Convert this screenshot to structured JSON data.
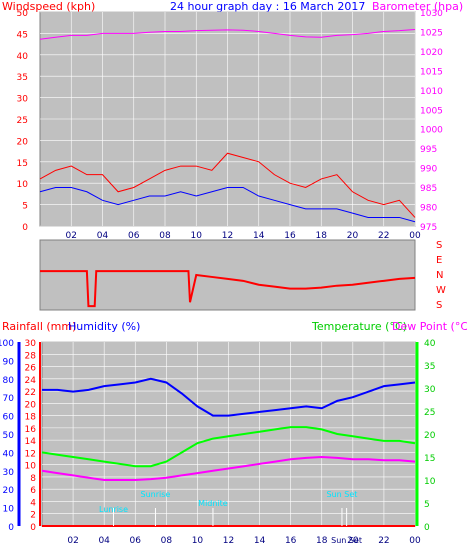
{
  "header": {
    "wind_label": "Windspeed (kph)",
    "title": "24 hour graph day : 16 March 2017",
    "baro_label": "Barometer (hpa)"
  },
  "lower_header": {
    "rain_label": "Rainfall (mm)",
    "hum_label": "Humidity (%)",
    "temp_label": "Temperature (°C)",
    "dew_label": "Dew Point (°C)"
  },
  "colors": {
    "plot_bg": "#c0c0c0",
    "grid": "#ffffff",
    "wind": "#ff0000",
    "wind_avg": "#0000ff",
    "barometer": "#ff00ff",
    "rain": "#ff0000",
    "humidity": "#0000ff",
    "temperature": "#00ff00",
    "dewpoint": "#ff00ff",
    "sun_labels": "#00e5ff"
  },
  "chart_data": [
    {
      "type": "line",
      "title": "24 hour graph day : 16 March 2017",
      "x_ticks": [
        "02",
        "04",
        "06",
        "08",
        "10",
        "12",
        "14",
        "16",
        "18",
        "20",
        "22",
        "00"
      ],
      "y_left": {
        "label": "Windspeed (kph)",
        "ticks": [
          0,
          5,
          10,
          15,
          20,
          25,
          30,
          35,
          40,
          45,
          50
        ],
        "ylim": [
          0,
          50
        ]
      },
      "y_right": {
        "label": "Barometer (hpa)",
        "ticks": [
          975,
          980,
          985,
          990,
          995,
          1000,
          1005,
          1010,
          1015,
          1020,
          1025,
          1030
        ],
        "ylim": [
          975,
          1030
        ]
      },
      "hours": [
        0,
        1,
        2,
        3,
        4,
        5,
        6,
        7,
        8,
        9,
        10,
        11,
        12,
        13,
        14,
        15,
        16,
        17,
        18,
        19,
        20,
        21,
        22,
        23,
        24
      ],
      "series": [
        {
          "name": "wind_gust",
          "axis": "left",
          "values": [
            11,
            13,
            14,
            12,
            12,
            8,
            9,
            11,
            13,
            14,
            14,
            13,
            17,
            16,
            15,
            12,
            10,
            9,
            11,
            12,
            8,
            6,
            5,
            6,
            2
          ]
        },
        {
          "name": "wind_avg",
          "axis": "left",
          "values": [
            8,
            9,
            9,
            8,
            6,
            5,
            6,
            7,
            7,
            8,
            7,
            8,
            9,
            9,
            7,
            6,
            5,
            4,
            4,
            4,
            3,
            2,
            2,
            2,
            1
          ]
        },
        {
          "name": "barometer",
          "axis": "right",
          "values": [
            1023,
            1023.5,
            1024,
            1024,
            1024.5,
            1024.5,
            1024.5,
            1024.8,
            1025,
            1025,
            1025.2,
            1025.3,
            1025.4,
            1025.3,
            1025,
            1024.5,
            1024,
            1023.6,
            1023.5,
            1024,
            1024.2,
            1024.5,
            1025,
            1025.2,
            1025.5
          ]
        }
      ]
    },
    {
      "type": "line",
      "title": "Wind direction",
      "y_ticks": [
        "S",
        "E",
        "N",
        "W",
        "S"
      ],
      "hours": [
        0,
        1,
        2,
        3,
        3.1,
        3.5,
        3.6,
        4,
        5,
        6,
        7,
        8,
        9,
        9.5,
        9.6,
        10,
        11,
        12,
        13,
        14,
        15,
        16,
        17,
        18,
        19,
        20,
        21,
        22,
        23,
        24
      ],
      "values": [
        200,
        200,
        200,
        200,
        20,
        20,
        200,
        200,
        200,
        200,
        200,
        200,
        200,
        200,
        40,
        180,
        170,
        160,
        150,
        130,
        120,
        110,
        110,
        115,
        125,
        130,
        140,
        150,
        160,
        165
      ]
    },
    {
      "type": "line",
      "x_ticks": [
        "02",
        "04",
        "06",
        "08",
        "10",
        "12",
        "14",
        "16",
        "18",
        "20",
        "22",
        "00"
      ],
      "y_left_rain": {
        "label": "Rainfall (mm)",
        "ticks": [
          0,
          2,
          4,
          6,
          8,
          10,
          12,
          14,
          16,
          18,
          20,
          22,
          24,
          26,
          28,
          30
        ],
        "ylim": [
          0,
          30
        ]
      },
      "y_left_humidity": {
        "label": "Humidity (%)",
        "ticks": [
          0,
          10,
          20,
          30,
          40,
          50,
          60,
          70,
          80,
          90,
          100
        ],
        "ylim": [
          0,
          100
        ]
      },
      "y_right": {
        "label": "Temperature (°C)",
        "ticks": [
          0,
          5,
          10,
          15,
          20,
          25,
          30,
          35,
          40
        ],
        "ylim": [
          0,
          40
        ]
      },
      "hours": [
        0,
        1,
        2,
        3,
        4,
        5,
        6,
        7,
        8,
        9,
        10,
        11,
        12,
        13,
        14,
        15,
        16,
        17,
        18,
        19,
        20,
        21,
        22,
        23,
        24
      ],
      "series": [
        {
          "name": "humidity",
          "axis": "humidity",
          "values": [
            74,
            74,
            73,
            74,
            76,
            77,
            78,
            80,
            78,
            72,
            65,
            60,
            60,
            61,
            62,
            63,
            64,
            65,
            64,
            68,
            70,
            73,
            76,
            77,
            78
          ]
        },
        {
          "name": "temperature",
          "axis": "right",
          "values": [
            16,
            15.5,
            15,
            14.5,
            14,
            13.5,
            13,
            13,
            14,
            16,
            18,
            19,
            19.5,
            20,
            20.5,
            21,
            21.5,
            21.5,
            21,
            20,
            19.5,
            19,
            18.5,
            18.5,
            18
          ]
        },
        {
          "name": "dewpoint",
          "axis": "right",
          "values": [
            12,
            11.5,
            11,
            10.5,
            10,
            10,
            10,
            10.2,
            10.5,
            11,
            11.5,
            12,
            12.5,
            13,
            13.5,
            14,
            14.5,
            14.8,
            15,
            14.8,
            14.5,
            14.5,
            14.3,
            14.3,
            14
          ]
        },
        {
          "name": "rainfall",
          "axis": "rain",
          "values": [
            0,
            0,
            0,
            0,
            0,
            0,
            0,
            0,
            0,
            0,
            0,
            0,
            0,
            0,
            0,
            0,
            0,
            0,
            0,
            0,
            0,
            0,
            0,
            0,
            0
          ]
        }
      ]
    }
  ],
  "sun_events": [
    {
      "label": "Lunrise",
      "hour": 4.6
    },
    {
      "label": "Sunrise",
      "hour": 7.3
    },
    {
      "label": "Midnite",
      "hour": 11
    },
    {
      "label": "Sun Set",
      "hour": 19.3
    },
    {
      "label": "Sun Set",
      "hour": 19.6
    }
  ]
}
